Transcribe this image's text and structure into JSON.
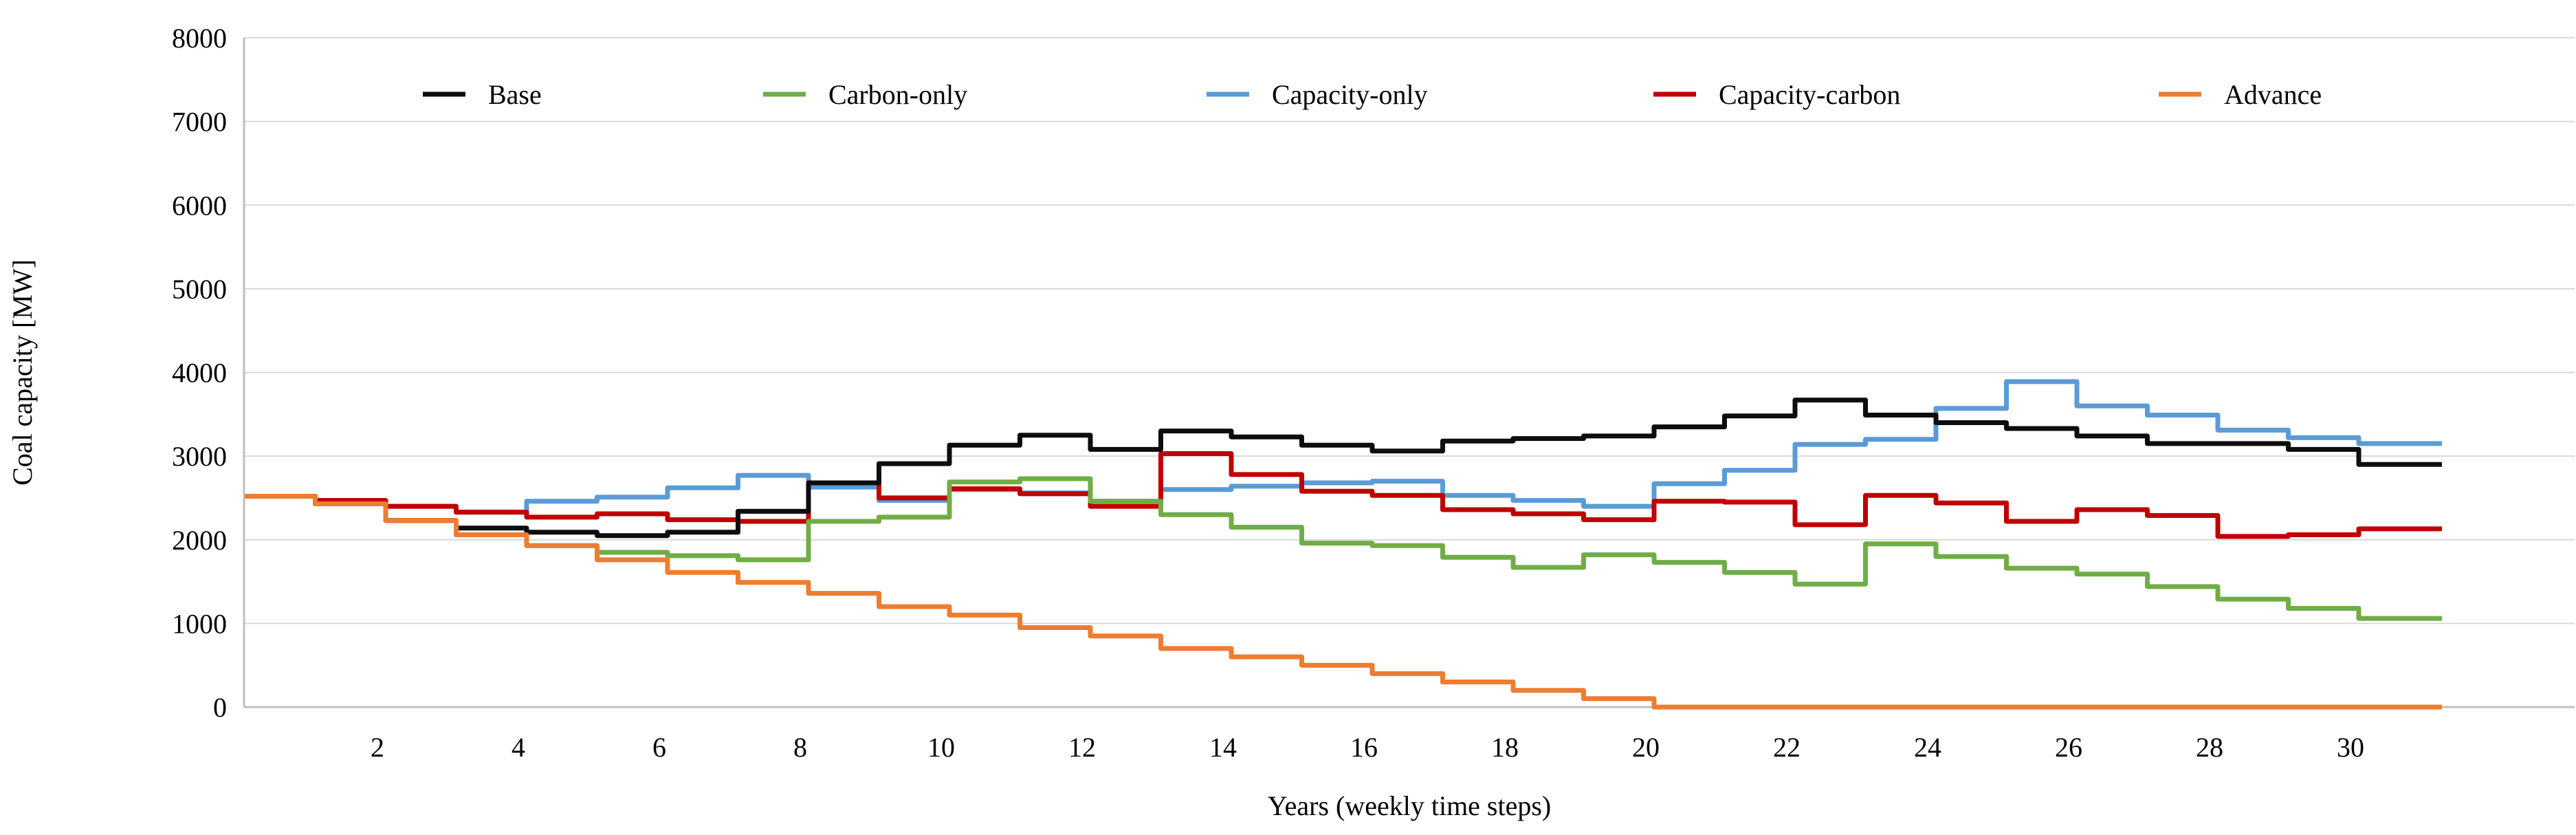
{
  "chart_data": {
    "type": "line",
    "subtype": "step",
    "title": "",
    "xlabel": "Years (weekly time steps)",
    "ylabel": "Coal capacity [MW]",
    "ylim": [
      0,
      8000
    ],
    "xlim": [
      0,
      31.3
    ],
    "y_ticks": [
      0,
      1000,
      2000,
      3000,
      4000,
      5000,
      6000,
      7000,
      8000
    ],
    "x_ticks": [
      2,
      4,
      6,
      8,
      10,
      12,
      14,
      16,
      18,
      20,
      22,
      24,
      26,
      28,
      30
    ],
    "grid": "horizontal",
    "legend_position": "top",
    "years": [
      0,
      1,
      2,
      3,
      4,
      5,
      6,
      7,
      8,
      9,
      10,
      11,
      12,
      13,
      14,
      15,
      16,
      17,
      18,
      19,
      20,
      21,
      22,
      23,
      24,
      25,
      26,
      27,
      28,
      29,
      30,
      31
    ],
    "series": [
      {
        "name": "Base",
        "color": "#0d0d0d",
        "values": [
          2520,
          2430,
          2230,
          2140,
          2090,
          2050,
          2090,
          2340,
          2680,
          2910,
          3130,
          3250,
          3080,
          3300,
          3230,
          3130,
          3060,
          3180,
          3210,
          3240,
          3350,
          3480,
          3670,
          3490,
          3400,
          3330,
          3240,
          3150,
          3150,
          3080,
          2900,
          2900
        ]
      },
      {
        "name": "Carbon-only",
        "color": "#70ad47",
        "values": [
          2520,
          2430,
          2230,
          2060,
          1930,
          1850,
          1810,
          1760,
          2220,
          2270,
          2690,
          2730,
          2460,
          2300,
          2150,
          1960,
          1930,
          1790,
          1670,
          1820,
          1730,
          1610,
          1470,
          1950,
          1800,
          1660,
          1590,
          1440,
          1290,
          1180,
          1060,
          1060
        ]
      },
      {
        "name": "Capacity-only",
        "color": "#5b9bd5",
        "values": [
          2520,
          2470,
          2400,
          2330,
          2460,
          2510,
          2620,
          2770,
          2630,
          2470,
          2600,
          2560,
          2460,
          2600,
          2640,
          2680,
          2700,
          2530,
          2470,
          2400,
          2670,
          2830,
          3140,
          3200,
          3570,
          3890,
          3600,
          3490,
          3310,
          3220,
          3150,
          3150
        ]
      },
      {
        "name": "Capacity-carbon",
        "color": "#c00000",
        "values": [
          2520,
          2470,
          2400,
          2330,
          2270,
          2310,
          2240,
          2220,
          2680,
          2500,
          2610,
          2550,
          2400,
          3030,
          2780,
          2580,
          2530,
          2360,
          2310,
          2240,
          2460,
          2450,
          2180,
          2530,
          2440,
          2220,
          2360,
          2290,
          2040,
          2060,
          2130,
          2130
        ]
      },
      {
        "name": "Advance",
        "color": "#ed7d31",
        "values": [
          2520,
          2430,
          2230,
          2060,
          1930,
          1760,
          1610,
          1490,
          1360,
          1200,
          1100,
          950,
          850,
          700,
          600,
          500,
          400,
          300,
          200,
          100,
          0,
          0,
          0,
          0,
          0,
          0,
          0,
          0,
          0,
          0,
          0,
          0
        ]
      }
    ],
    "style": {
      "grid_color": "#d9d9d9",
      "axis_color": "#bfbfbf",
      "line_width": 7,
      "font_size_ticks": 40,
      "font_size_labels": 40,
      "font_size_legend": 40
    }
  }
}
